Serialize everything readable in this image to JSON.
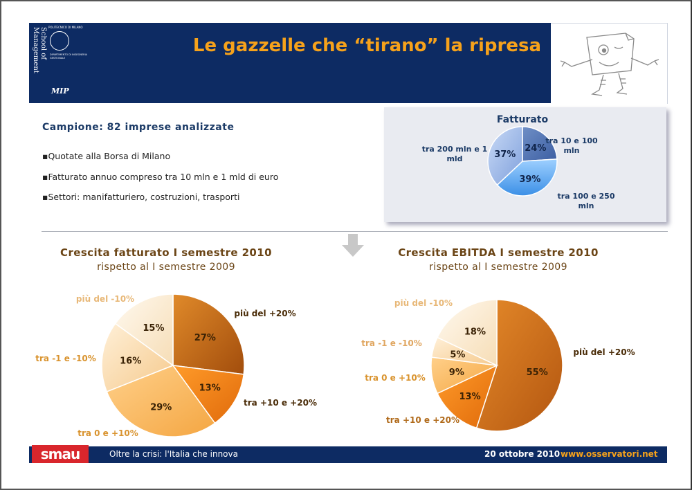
{
  "header": {
    "title": "Le gazzelle che “tirano” la ripresa",
    "school": "School of Management",
    "university": "POLITECNICO DI MILANO",
    "department": "DIPARTIMENTO DI INGEGNERIA GESTIONALE",
    "mip": "MIP"
  },
  "sample": {
    "heading": "Campione: 82 imprese analizzate",
    "bullets": [
      "▪Quotate alla Borsa di Milano",
      "▪Fatturato annuo compreso tra 10 mln e 1 mld di euro",
      "▪Settori: manifatturiero, costruzioni, trasporti"
    ]
  },
  "footer": {
    "brand": "smau",
    "text": "Oltre la crisi: l'Italia che innova",
    "date": "20 ottobre 2010",
    "url": "www.osservatori.net"
  },
  "colors": {
    "navy": "#0d2b63",
    "orange": "#f6a21b",
    "red": "#d9262c"
  },
  "chart_data": [
    {
      "type": "pie",
      "title": "Fatturato",
      "slices": [
        {
          "label": "tra 10 e 100 mln",
          "value": 24,
          "display": "24%"
        },
        {
          "label": "tra 100 e 250 mln",
          "value": 39,
          "display": "39%"
        },
        {
          "label": "tra 200 mln e 1 mld",
          "value": 37,
          "display": "37%"
        }
      ]
    },
    {
      "type": "pie",
      "title": "Crescita fatturato I semestre 2010",
      "subtitle": "rispetto al I semestre 2009",
      "slices": [
        {
          "label": "più del +20%",
          "value": 27,
          "display": "27%"
        },
        {
          "label": "tra +10 e +20%",
          "value": 13,
          "display": "13%"
        },
        {
          "label": "tra 0 e +10%",
          "value": 29,
          "display": "29%"
        },
        {
          "label": "tra -1 e -10%",
          "value": 16,
          "display": "16%"
        },
        {
          "label": "più del -10%",
          "value": 15,
          "display": "15%"
        }
      ]
    },
    {
      "type": "pie",
      "title": "Crescita EBITDA I semestre 2010",
      "subtitle": "rispetto al I semestre 2009",
      "slices": [
        {
          "label": "più del +20%",
          "value": 55,
          "display": "55%"
        },
        {
          "label": "tra +10 e +20%",
          "value": 13,
          "display": "13%"
        },
        {
          "label": "tra 0 e +10%",
          "value": 9,
          "display": "9%"
        },
        {
          "label": "tra -1 e -10%",
          "value": 5,
          "display": "5%"
        },
        {
          "label": "più del -10%",
          "value": 18,
          "display": "18%"
        }
      ]
    }
  ]
}
